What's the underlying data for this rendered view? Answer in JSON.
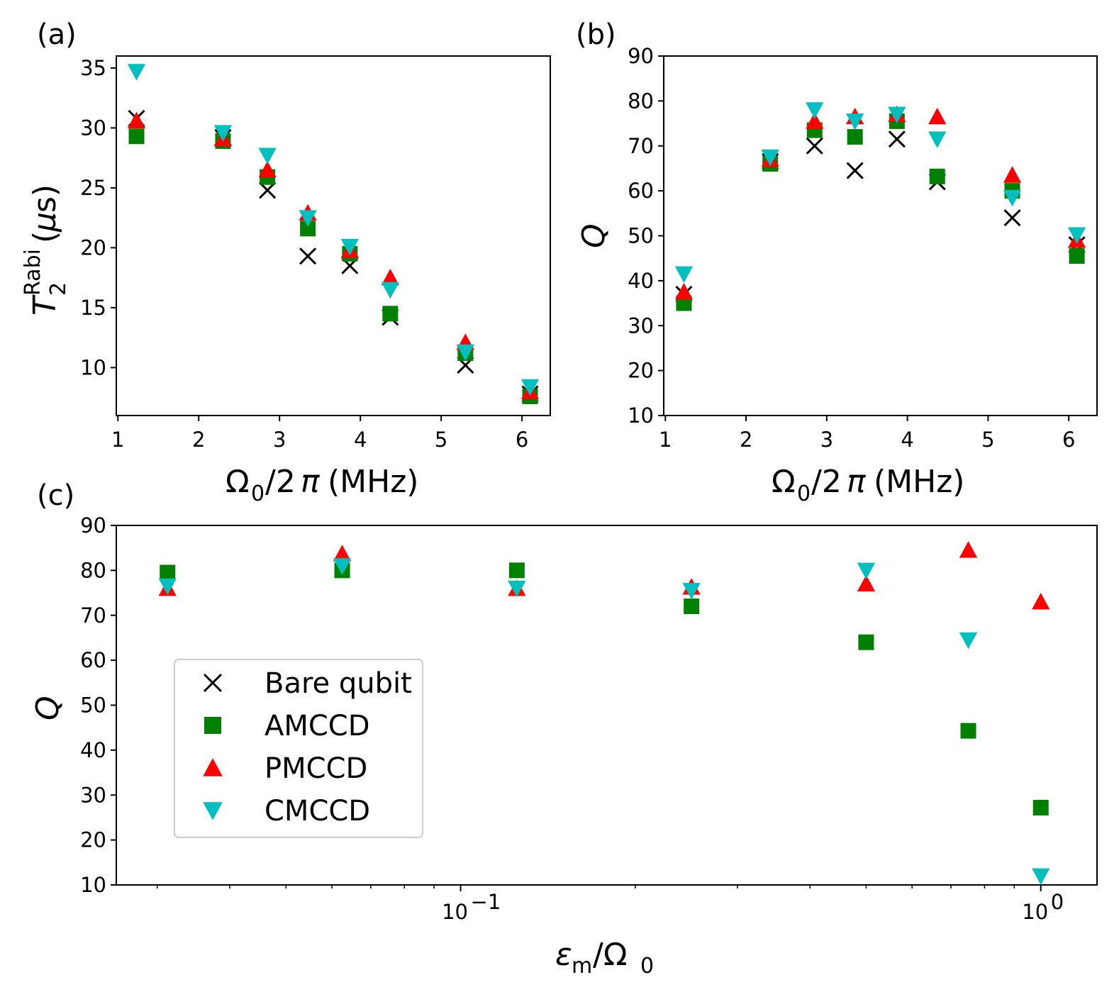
{
  "colors": {
    "bare": "#000000",
    "amccd": "#008000",
    "pmccd": "#ff0000",
    "cmccd": "#00bfbf"
  },
  "legend": {
    "placement": "center-left",
    "entries": [
      {
        "key": "bare",
        "label": "Bare qubit",
        "marker": "x"
      },
      {
        "key": "amccd",
        "label": "AMCCD",
        "marker": "square"
      },
      {
        "key": "pmccd",
        "label": "PMCCD",
        "marker": "triangle-up"
      },
      {
        "key": "cmccd",
        "label": "CMCCD",
        "marker": "triangle-down"
      }
    ]
  },
  "chart_data": [
    {
      "panel": "(a)",
      "type": "scatter",
      "xlabel": "Ω0/2π (MHz)",
      "ylabel": "T2Rabi (μs)",
      "xlim": [
        0.98,
        6.35
      ],
      "ylim": [
        6,
        36
      ],
      "xticks": [
        1,
        2,
        3,
        4,
        5,
        6
      ],
      "yticks": [
        10,
        15,
        20,
        25,
        30,
        35
      ],
      "x": [
        1.23,
        2.3,
        2.85,
        3.35,
        3.87,
        4.37,
        5.3,
        6.1
      ],
      "series": [
        {
          "key": "bare",
          "values": [
            30.8,
            29.2,
            24.8,
            19.3,
            18.5,
            14.2,
            10.2,
            7.8
          ]
        },
        {
          "key": "amccd",
          "values": [
            29.3,
            28.9,
            25.9,
            21.6,
            19.5,
            14.5,
            11.2,
            7.6
          ]
        },
        {
          "key": "pmccd",
          "values": [
            30.6,
            29.1,
            26.5,
            22.9,
            19.8,
            17.5,
            12.1,
            8.0
          ]
        },
        {
          "key": "cmccd",
          "values": [
            34.7,
            29.6,
            27.7,
            22.5,
            20.1,
            16.5,
            11.3,
            8.4
          ]
        }
      ]
    },
    {
      "panel": "(b)",
      "type": "scatter",
      "xlabel": "Ω0/2π (MHz)",
      "ylabel": "Q",
      "xlim": [
        0.98,
        6.35
      ],
      "ylim": [
        10,
        90
      ],
      "xticks": [
        1,
        2,
        3,
        4,
        5,
        6
      ],
      "yticks": [
        10,
        20,
        30,
        40,
        50,
        60,
        70,
        80,
        90
      ],
      "x": [
        1.23,
        2.3,
        2.85,
        3.35,
        3.87,
        4.37,
        5.3,
        6.1
      ],
      "series": [
        {
          "key": "bare",
          "values": [
            37.0,
            66.5,
            70.0,
            64.5,
            71.5,
            62.0,
            54.0,
            48.0
          ]
        },
        {
          "key": "amccd",
          "values": [
            35.0,
            66.0,
            73.5,
            72.0,
            75.5,
            63.2,
            60.0,
            45.5
          ]
        },
        {
          "key": "pmccd",
          "values": [
            37.5,
            67.0,
            75.5,
            76.5,
            77.0,
            76.5,
            63.5,
            49.0
          ]
        },
        {
          "key": "cmccd",
          "values": [
            41.5,
            67.5,
            78.0,
            75.5,
            77.0,
            71.5,
            58.5,
            50.2
          ]
        }
      ]
    },
    {
      "panel": "(c)",
      "type": "scatter",
      "xscale": "log",
      "xlabel": "εm/Ω0",
      "ylabel": "Q",
      "xlim": [
        0.0255,
        1.25
      ],
      "ylim": [
        10,
        90
      ],
      "xticks": [
        0.1,
        1
      ],
      "xtick_labels": [
        {
          "base": "10",
          "exp": "−1"
        },
        {
          "base": "10",
          "exp": "0"
        }
      ],
      "yticks": [
        10,
        20,
        30,
        40,
        50,
        60,
        70,
        80,
        90
      ],
      "x": [
        0.03125,
        0.0625,
        0.125,
        0.25,
        0.5,
        0.75,
        1.0
      ],
      "series": [
        {
          "key": "amccd",
          "values": [
            79.5,
            80.0,
            80.0,
            72.0,
            64.0,
            44.3,
            27.2
          ]
        },
        {
          "key": "pmccd",
          "values": [
            76.0,
            83.7,
            76.0,
            76.3,
            77.0,
            84.5,
            73.0
          ]
        },
        {
          "key": "cmccd",
          "values": [
            76.5,
            81.0,
            76.0,
            75.5,
            80.0,
            64.5,
            12.0
          ]
        }
      ]
    }
  ]
}
